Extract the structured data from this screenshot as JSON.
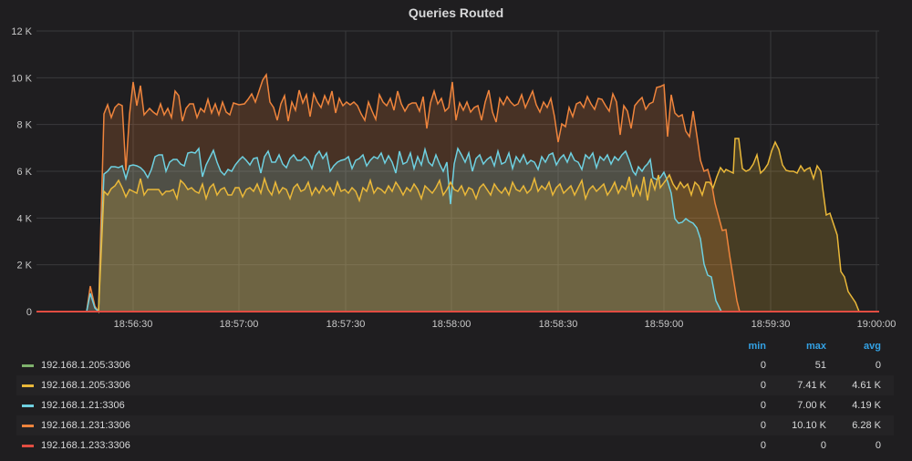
{
  "panel": {
    "title": "Queries Routed"
  },
  "chart_data": {
    "type": "area",
    "title": "Queries Routed",
    "xlabel": "",
    "ylabel": "",
    "ylim": [
      0,
      12000
    ],
    "y_ticks": [
      "0",
      "2 K",
      "4 K",
      "6 K",
      "8 K",
      "10 K",
      "12 K"
    ],
    "x_ticks": [
      "18:56:30",
      "18:57:00",
      "18:57:30",
      "18:58:00",
      "18:58:30",
      "18:59:00",
      "18:59:30",
      "19:00:00"
    ],
    "grid": true,
    "legend_position": "bottom",
    "x": [
      "18:56:10",
      "18:56:15",
      "18:56:20",
      "18:56:30",
      "18:56:45",
      "18:57:00",
      "18:57:15",
      "18:57:30",
      "18:57:45",
      "18:58:00",
      "18:58:15",
      "18:58:30",
      "18:58:45",
      "18:58:50",
      "18:58:55",
      "18:59:00",
      "18:59:05",
      "18:59:10",
      "18:59:15",
      "18:59:20",
      "18:59:30",
      "18:59:40",
      "18:59:45",
      "18:59:50",
      "18:59:55",
      "19:00:00"
    ],
    "series": [
      {
        "name": "192.168.1.205:3306",
        "color": "#7eb26d",
        "values": [
          0,
          0,
          0,
          0,
          0,
          0,
          0,
          0,
          0,
          0,
          0,
          0,
          0,
          0,
          0,
          0,
          0,
          0,
          0,
          0,
          0,
          0,
          0,
          0,
          0,
          0
        ]
      },
      {
        "name": "192.168.1.205:3306",
        "color": "#eab839",
        "values": [
          0,
          0,
          5100,
          5200,
          5300,
          5200,
          5100,
          5300,
          5200,
          5300,
          5200,
          5200,
          5300,
          5500,
          5400,
          5300,
          5500,
          5600,
          6000,
          7200,
          6000,
          6000,
          4000,
          1500,
          0,
          0
        ]
      },
      {
        "name": "192.168.1.21:3306",
        "color": "#6ed0e0",
        "values": [
          0,
          0,
          6000,
          6200,
          6300,
          6300,
          6200,
          6300,
          6300,
          6400,
          6300,
          6300,
          6300,
          5500,
          3900,
          3800,
          1500,
          0,
          0,
          0,
          0,
          0,
          0,
          0,
          0,
          0
        ]
      },
      {
        "name": "192.168.1.231:3306",
        "color": "#ef843c",
        "values": [
          0,
          800,
          8400,
          8800,
          8800,
          9000,
          8700,
          8800,
          8800,
          8900,
          8500,
          8600,
          8800,
          8800,
          9500,
          8500,
          7800,
          5500,
          3000,
          0,
          0,
          0,
          0,
          0,
          0,
          0
        ]
      },
      {
        "name": "192.168.1.233:3306",
        "color": "#e24d42",
        "values": [
          0,
          0,
          0,
          0,
          0,
          0,
          0,
          0,
          0,
          0,
          0,
          0,
          0,
          0,
          0,
          0,
          0,
          0,
          0,
          0,
          0,
          0,
          0,
          0,
          0,
          0
        ]
      }
    ]
  },
  "legend": {
    "headers": {
      "min": "min",
      "max": "max",
      "avg": "avg"
    },
    "rows": [
      {
        "name": "192.168.1.205:3306",
        "color": "#7eb26d",
        "min": "0",
        "max": "51",
        "avg": "0"
      },
      {
        "name": "192.168.1.205:3306",
        "color": "#eab839",
        "min": "0",
        "max": "7.41 K",
        "avg": "4.61 K"
      },
      {
        "name": "192.168.1.21:3306",
        "color": "#6ed0e0",
        "min": "0",
        "max": "7.00 K",
        "avg": "4.19 K"
      },
      {
        "name": "192.168.1.231:3306",
        "color": "#ef843c",
        "min": "0",
        "max": "10.10 K",
        "avg": "6.28 K"
      },
      {
        "name": "192.168.1.233:3306",
        "color": "#e24d42",
        "min": "0",
        "max": "0",
        "avg": "0"
      }
    ]
  }
}
